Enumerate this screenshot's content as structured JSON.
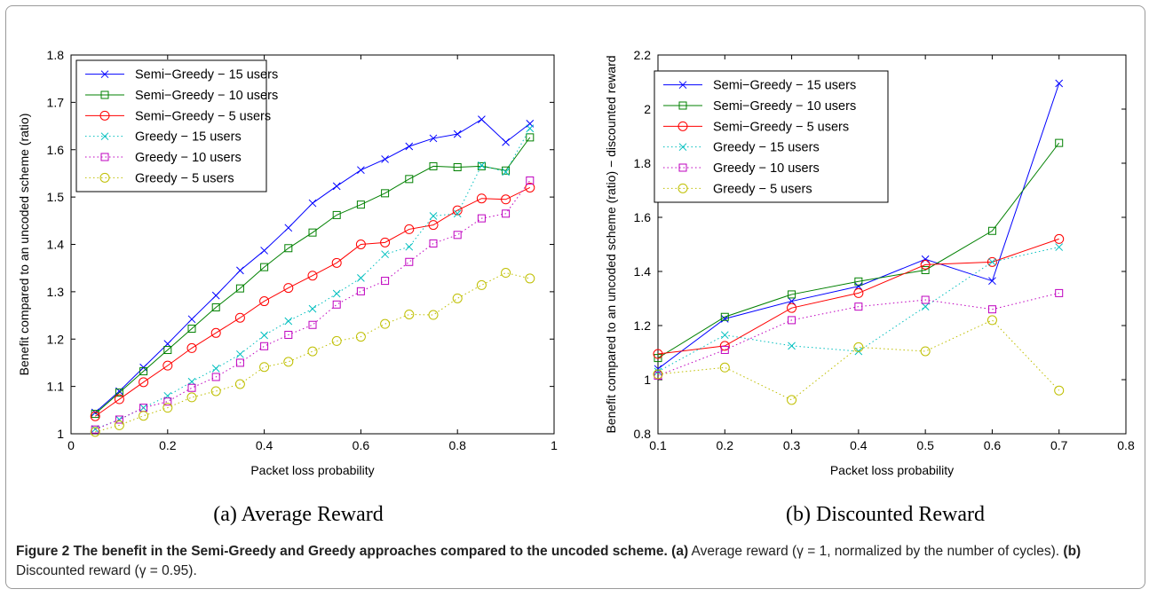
{
  "chart_data": [
    {
      "type": "line",
      "subcaption": "(a)  Average Reward",
      "xlabel": "Packet loss probability",
      "ylabel": "Benefit compared to an uncoded scheme (ratio)",
      "xlim": [
        0,
        1
      ],
      "ylim": [
        1,
        1.8
      ],
      "xticks": [
        "0",
        "0.2",
        "0.4",
        "0.6",
        "0.8",
        "1"
      ],
      "yticks": [
        "1",
        "1.1",
        "1.2",
        "1.3",
        "1.4",
        "1.5",
        "1.6",
        "1.7",
        "1.8"
      ],
      "legend_position": "top-left",
      "x": [
        0.05,
        0.1,
        0.15,
        0.2,
        0.25,
        0.3,
        0.35,
        0.4,
        0.45,
        0.5,
        0.55,
        0.6,
        0.65,
        0.7,
        0.75,
        0.8,
        0.85,
        0.9,
        0.95
      ],
      "series": [
        {
          "name": "Semi−Greedy − 15 users",
          "color": "#0000ff",
          "marker": "x",
          "style": "solid",
          "values": [
            1.045,
            1.09,
            1.14,
            1.19,
            1.242,
            1.292,
            1.345,
            1.387,
            1.435,
            1.487,
            1.523,
            1.557,
            1.58,
            1.607,
            1.624,
            1.633,
            1.664,
            1.616,
            1.655
          ]
        },
        {
          "name": "Semi−Greedy − 10 users",
          "color": "#008000",
          "marker": "square",
          "style": "solid",
          "values": [
            1.042,
            1.087,
            1.132,
            1.177,
            1.222,
            1.267,
            1.307,
            1.352,
            1.392,
            1.425,
            1.462,
            1.484,
            1.508,
            1.538,
            1.565,
            1.563,
            1.565,
            1.556,
            1.626
          ]
        },
        {
          "name": "Semi−Greedy − 5 users",
          "color": "#ff0000",
          "marker": "circle",
          "style": "solid",
          "values": [
            1.037,
            1.073,
            1.109,
            1.144,
            1.181,
            1.213,
            1.245,
            1.28,
            1.308,
            1.334,
            1.361,
            1.4,
            1.404,
            1.432,
            1.441,
            1.472,
            1.497,
            1.495,
            1.52
          ]
        },
        {
          "name": "Greedy − 15 users",
          "color": "#00bfbf",
          "marker": "x",
          "style": "dotted",
          "values": [
            1.01,
            1.03,
            1.055,
            1.08,
            1.11,
            1.138,
            1.168,
            1.208,
            1.238,
            1.264,
            1.296,
            1.329,
            1.379,
            1.395,
            1.46,
            1.465,
            1.567,
            1.553,
            1.645
          ]
        },
        {
          "name": "Greedy − 10 users",
          "color": "#bf00bf",
          "marker": "square",
          "style": "dotted",
          "values": [
            1.009,
            1.03,
            1.055,
            1.068,
            1.097,
            1.12,
            1.15,
            1.185,
            1.209,
            1.23,
            1.273,
            1.301,
            1.323,
            1.363,
            1.402,
            1.42,
            1.455,
            1.465,
            1.535
          ]
        },
        {
          "name": "Greedy − 5 users",
          "color": "#bfbf00",
          "marker": "circle",
          "style": "dotted",
          "values": [
            1.004,
            1.018,
            1.038,
            1.055,
            1.077,
            1.09,
            1.105,
            1.141,
            1.152,
            1.174,
            1.196,
            1.205,
            1.232,
            1.252,
            1.251,
            1.286,
            1.314,
            1.34,
            1.328
          ]
        }
      ]
    },
    {
      "type": "line",
      "subcaption": "(b)  Discounted Reward",
      "xlabel": "Packet loss probability",
      "ylabel": "Benefit compared to an uncoded scheme (ratio) − discounted reward",
      "xlim": [
        0.1,
        0.8
      ],
      "ylim": [
        0.8,
        2.2
      ],
      "xticks": [
        "0.1",
        "0.2",
        "0.3",
        "0.4",
        "0.5",
        "0.6",
        "0.7",
        "0.8"
      ],
      "yticks": [
        "0.8",
        "1",
        "1.2",
        "1.4",
        "1.6",
        "1.8",
        "2",
        "2.2"
      ],
      "legend_position": "top-left",
      "x": [
        0.1,
        0.2,
        0.3,
        0.4,
        0.5,
        0.6,
        0.7
      ],
      "series": [
        {
          "name": "Semi−Greedy − 15 users",
          "color": "#0000ff",
          "marker": "x",
          "style": "solid",
          "values": [
            1.04,
            1.225,
            1.29,
            1.345,
            1.445,
            1.365,
            2.095
          ]
        },
        {
          "name": "Semi−Greedy − 10 users",
          "color": "#008000",
          "marker": "square",
          "style": "solid",
          "values": [
            1.08,
            1.232,
            1.315,
            1.363,
            1.405,
            1.55,
            1.875
          ]
        },
        {
          "name": "Semi−Greedy − 5 users",
          "color": "#ff0000",
          "marker": "circle",
          "style": "solid",
          "values": [
            1.095,
            1.125,
            1.265,
            1.32,
            1.425,
            1.435,
            1.52
          ]
        },
        {
          "name": "Greedy − 15 users",
          "color": "#00bfbf",
          "marker": "x",
          "style": "dotted",
          "values": [
            1.03,
            1.165,
            1.125,
            1.105,
            1.27,
            1.435,
            1.49
          ]
        },
        {
          "name": "Greedy − 10 users",
          "color": "#bf00bf",
          "marker": "square",
          "style": "dotted",
          "values": [
            1.015,
            1.11,
            1.22,
            1.27,
            1.295,
            1.26,
            1.32
          ]
        },
        {
          "name": "Greedy − 5 users",
          "color": "#bfbf00",
          "marker": "circle",
          "style": "dotted",
          "values": [
            1.02,
            1.045,
            0.925,
            1.12,
            1.105,
            1.22,
            0.96
          ]
        }
      ]
    }
  ],
  "caption": {
    "bold": "Figure 2 The benefit in the Semi-Greedy and Greedy approaches compared to the uncoded scheme.",
    "a_label": "(a)",
    "a_text": " Average reward (γ = 1, normalized by the number of cycles). ",
    "b_label": "(b)",
    "b_text": " Discounted reward (γ = 0.95)."
  }
}
